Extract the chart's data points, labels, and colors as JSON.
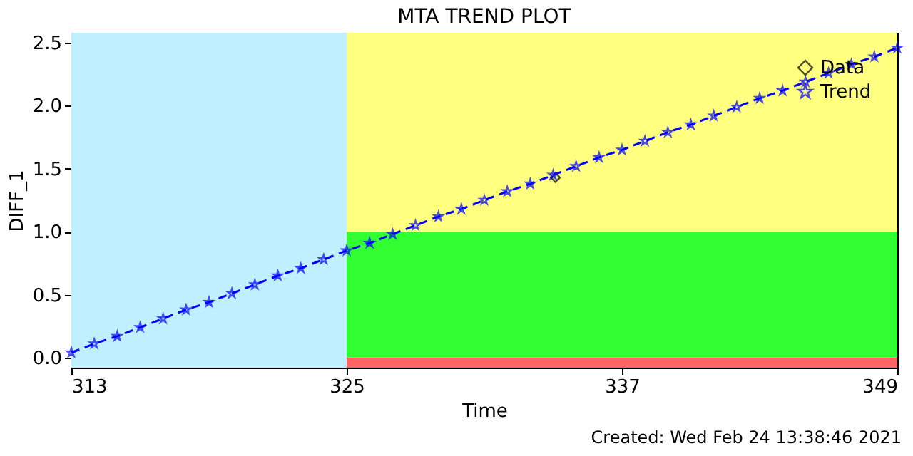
{
  "chart_data": {
    "type": "scatter",
    "title": "MTA TREND PLOT",
    "xlabel": "Time",
    "ylabel": "DIFF_1",
    "annotations": [
      "Created: Wed Feb 24 13:38:46 2021"
    ],
    "xlim": [
      313,
      349
    ],
    "xticks": [
      313,
      325,
      337,
      349
    ],
    "ylim": [
      -0.08,
      2.58
    ],
    "yticks": [
      {
        "value": 0,
        "label": "0.0"
      },
      {
        "value": 0.5,
        "label": "0.5"
      },
      {
        "value": 1,
        "label": "1.0"
      },
      {
        "value": 1.5,
        "label": "1.5"
      },
      {
        "value": 2,
        "label": "2.0"
      },
      {
        "value": 2.5,
        "label": "2.5"
      }
    ],
    "grid": false,
    "legend": "top right",
    "bands": [
      {
        "axis": "y",
        "from": -0.08,
        "to": 0,
        "color": "#ff6464"
      },
      {
        "axis": "y",
        "from": 0,
        "to": 1,
        "color": "#32ff32"
      },
      {
        "axis": "y",
        "from": 1,
        "to": 2.58,
        "color": "#ffff80"
      },
      {
        "axis": "x",
        "from": 313,
        "to": 325,
        "color": "#c0f0ff"
      }
    ],
    "series": [
      {
        "name": "Data",
        "type": "scatter",
        "marker": "diamond",
        "color": "#000000",
        "x": [
          334.1
        ],
        "values": [
          1.43
        ]
      },
      {
        "name": "Trend",
        "type": "line",
        "marker": "star",
        "line_style": "dashed",
        "color": "#0000ff",
        "x": [
          313,
          314,
          315,
          316,
          317,
          318,
          319,
          320,
          321,
          322,
          323,
          324,
          325,
          326,
          327,
          328,
          329,
          330,
          331,
          332,
          333,
          334,
          335,
          336,
          337,
          338,
          339,
          340,
          341,
          342,
          343,
          344,
          345,
          346,
          347,
          348,
          349
        ],
        "values": [
          0.04,
          0.11,
          0.17,
          0.24,
          0.31,
          0.38,
          0.44,
          0.51,
          0.58,
          0.65,
          0.71,
          0.78,
          0.85,
          0.91,
          0.98,
          1.05,
          1.12,
          1.18,
          1.25,
          1.32,
          1.38,
          1.45,
          1.52,
          1.59,
          1.65,
          1.72,
          1.79,
          1.85,
          1.92,
          1.99,
          2.06,
          2.12,
          2.19,
          2.26,
          2.33,
          2.39,
          2.46
        ]
      }
    ]
  }
}
